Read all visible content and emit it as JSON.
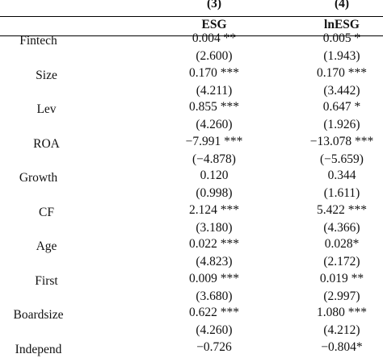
{
  "columns": [
    {
      "number": "(3)",
      "name": "ESG"
    },
    {
      "number": "(4)",
      "name": "lnESG"
    }
  ],
  "rows": [
    {
      "variable": "Fintech",
      "c3_coef": "0.004 **",
      "c3_t": "(2.600)",
      "c4_coef": "0.005 *",
      "c4_t": "(1.943)"
    },
    {
      "variable": "Size",
      "c3_coef": "0.170 ***",
      "c3_t": "(4.211)",
      "c4_coef": "0.170 ***",
      "c4_t": "(3.442)"
    },
    {
      "variable": "Lev",
      "c3_coef": "0.855 ***",
      "c3_t": "(4.260)",
      "c4_coef": "0.647 *",
      "c4_t": "(1.926)"
    },
    {
      "variable": "ROA",
      "c3_coef": "−7.991 ***",
      "c3_t": "(−4.878)",
      "c4_coef": "−13.078 ***",
      "c4_t": "(−5.659)"
    },
    {
      "variable": "Growth",
      "c3_coef": "0.120",
      "c3_t": "(0.998)",
      "c4_coef": "0.344",
      "c4_t": "(1.611)"
    },
    {
      "variable": "CF",
      "c3_coef": "2.124 ***",
      "c3_t": "(3.180)",
      "c4_coef": "5.422 ***",
      "c4_t": "(4.366)"
    },
    {
      "variable": "Age",
      "c3_coef": "0.022 ***",
      "c3_t": "(4.823)",
      "c4_coef": "0.028*",
      "c4_t": "(2.172)"
    },
    {
      "variable": "First",
      "c3_coef": "0.009 ***",
      "c3_t": "(3.680)",
      "c4_coef": "0.019 **",
      "c4_t": "(2.997)"
    },
    {
      "variable": "Boardsize",
      "c3_coef": "0.622 ***",
      "c3_t": "(4.260)",
      "c4_coef": "1.080 ***",
      "c4_t": "(4.212)"
    },
    {
      "variable": "Independ",
      "c3_coef": "−0.726",
      "c3_t": "",
      "c4_coef": "−0.804*",
      "c4_t": ""
    }
  ]
}
